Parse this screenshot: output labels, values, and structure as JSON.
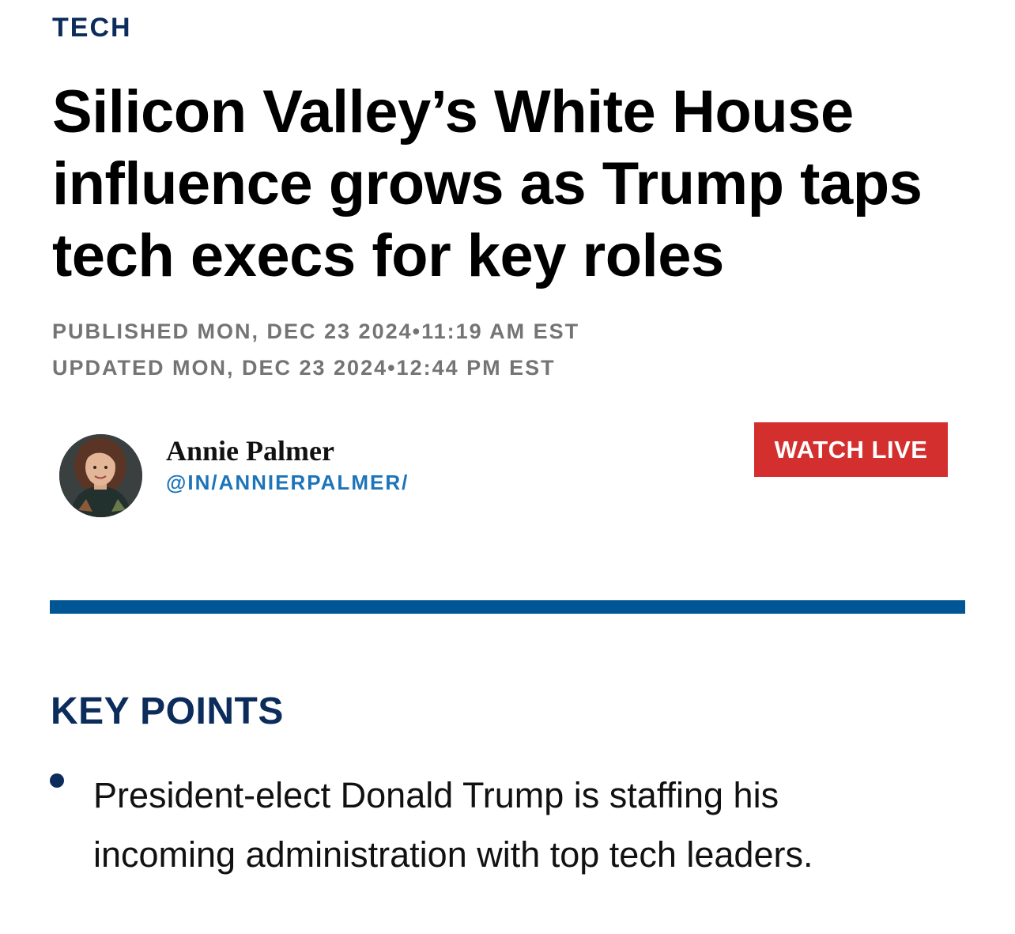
{
  "article": {
    "section": "TECH",
    "headline": "Silicon Valley’s White House influence grows as Trump taps tech execs for key roles",
    "published": "PUBLISHED MON, DEC 23 2024•11:19 AM EST",
    "updated": "UPDATED MON, DEC 23 2024•12:44 PM EST"
  },
  "author": {
    "name": "Annie Palmer",
    "handle": "@IN/ANNIERPALMER/",
    "avatar_icon": "author-photo"
  },
  "watch_live": {
    "label": "WATCH LIVE",
    "color": "#d32f2f"
  },
  "key_points": {
    "title": "KEY POINTS",
    "items": [
      "President-elect Donald Trump is staffing his incoming administration with top tech leaders."
    ]
  },
  "colors": {
    "navy": "#0c2c5c",
    "divider_blue": "#005594",
    "link_blue": "#1d74b9",
    "meta_gray": "#747474"
  }
}
